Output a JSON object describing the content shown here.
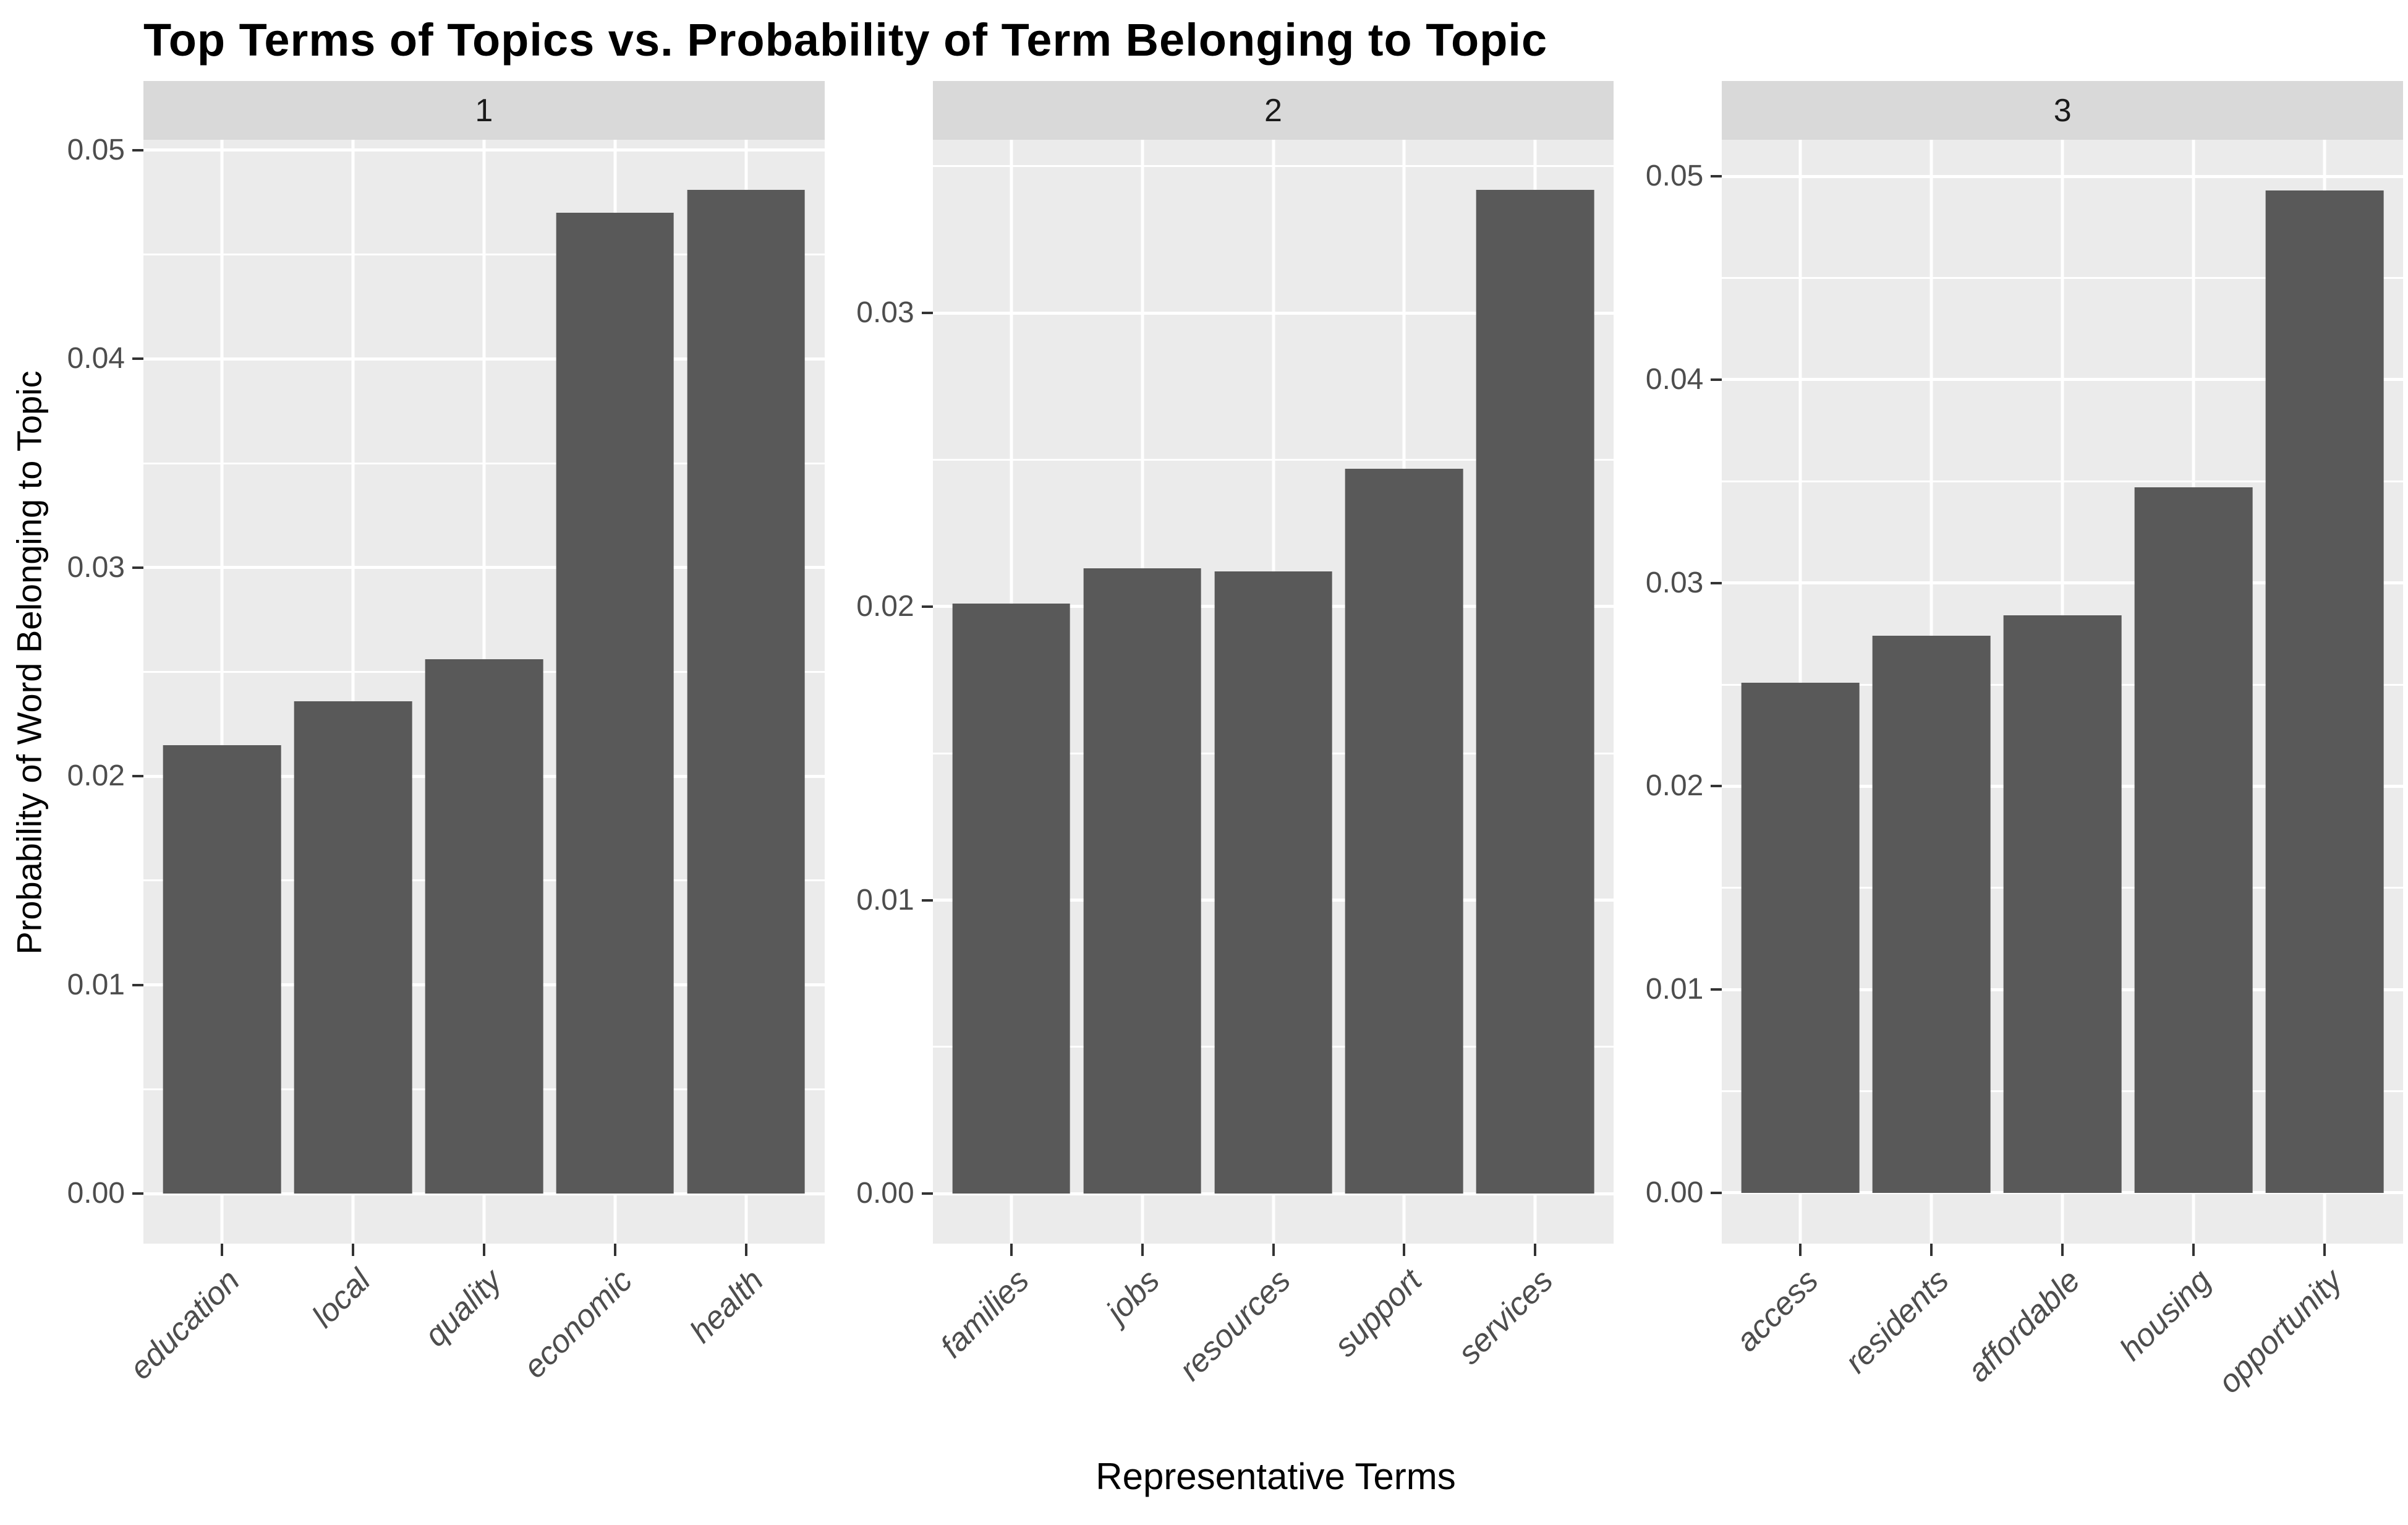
{
  "page": {
    "title": "Top Terms of Topics vs. Probability of Term Belonging to Topic"
  },
  "axes": {
    "x_title": "Representative Terms",
    "y_title": "Probability of Word Belonging to Topic"
  },
  "colors": {
    "bar_fill": "#595959",
    "panel_bg": "#EBEBEB",
    "strip_bg": "#D9D9D9",
    "grid_line": "#FFFFFF",
    "axis_text": "#4D4D4D",
    "strip_text": "#1A1A1A",
    "tick_mark": "#333333",
    "title_text": "#000000",
    "page_bg": "#FFFFFF"
  },
  "chart_data": {
    "type": "bar",
    "title": "Top Terms of Topics vs. Probability of Term Belonging to Topic",
    "xlabel": "Representative Terms",
    "ylabel": "Probability of Word Belonging to Topic",
    "legend": "none",
    "grid": true,
    "bar_width_fraction": 0.9,
    "facets": [
      {
        "label": "1",
        "categories": [
          "education",
          "local",
          "quality",
          "economic",
          "health"
        ],
        "values": [
          0.0215,
          0.0236,
          0.0256,
          0.047,
          0.0481
        ],
        "ytick_labels": [
          "0.00",
          "0.01",
          "0.02",
          "0.03",
          "0.04",
          "0.05"
        ],
        "ylim": [
          -0.0024,
          0.0505
        ]
      },
      {
        "label": "2",
        "categories": [
          "families",
          "jobs",
          "resources",
          "support",
          "services"
        ],
        "values": [
          0.0201,
          0.0213,
          0.0212,
          0.0247,
          0.0342
        ],
        "ytick_labels": [
          "0.00",
          "0.01",
          "0.02",
          "0.03"
        ],
        "ylim": [
          -0.0017,
          0.0359
        ]
      },
      {
        "label": "3",
        "categories": [
          "access",
          "residents",
          "affordable",
          "housing",
          "opportunity"
        ],
        "values": [
          0.0251,
          0.0274,
          0.0284,
          0.0347,
          0.0493
        ],
        "ytick_labels": [
          "0.00",
          "0.01",
          "0.02",
          "0.03",
          "0.04",
          "0.05"
        ],
        "ylim": [
          -0.0025,
          0.0518
        ]
      }
    ]
  }
}
